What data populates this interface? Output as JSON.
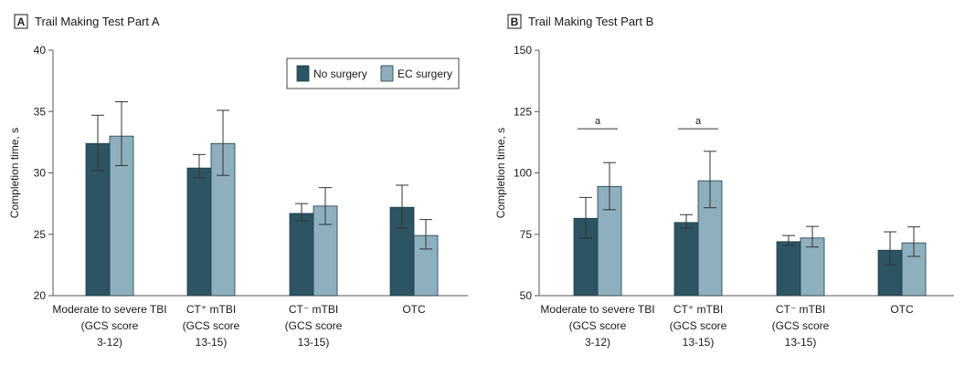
{
  "legend": {
    "items": [
      {
        "label": "No surgery",
        "color": "#2d5463"
      },
      {
        "label": "EC surgery",
        "color": "#8eafbe"
      }
    ],
    "placement": "top-right of panel A"
  },
  "categories": [
    [
      "Moderate to severe TBI",
      "(GCS score",
      "3-12)"
    ],
    [
      "CT⁺ mTBI",
      "(GCS score",
      "13-15)"
    ],
    [
      "CT⁻ mTBI",
      "(GCS score",
      "13-15)"
    ],
    [
      "OTC"
    ]
  ],
  "chart_data": [
    {
      "type": "bar",
      "panel": "A",
      "title": "Trail Making Test Part A",
      "ylabel": "Completion time, s",
      "ylim": [
        20,
        40
      ],
      "yticks": [
        20,
        25,
        30,
        35,
        40
      ],
      "categories": [
        "Moderate to severe TBI (GCS score 3-12)",
        "CT+ mTBI (GCS score 13-15)",
        "CT− mTBI (GCS score 13-15)",
        "OTC"
      ],
      "series": [
        {
          "name": "No surgery",
          "values": [
            32.4,
            30.4,
            26.7,
            27.2
          ],
          "error_low": [
            30.2,
            29.6,
            26.1,
            25.5
          ],
          "error_high": [
            34.7,
            31.5,
            27.5,
            29.0
          ]
        },
        {
          "name": "EC surgery",
          "values": [
            33.0,
            32.4,
            27.3,
            24.9
          ],
          "error_low": [
            30.6,
            29.8,
            25.8,
            23.8
          ],
          "error_high": [
            35.8,
            35.1,
            28.8,
            26.2
          ]
        }
      ],
      "annotations": []
    },
    {
      "type": "bar",
      "panel": "B",
      "title": "Trail Making Test Part B",
      "ylabel": "Completion time, s",
      "ylim": [
        50,
        150
      ],
      "yticks": [
        50,
        75,
        100,
        125,
        150
      ],
      "categories": [
        "Moderate to severe TBI (GCS score 3-12)",
        "CT+ mTBI (GCS score 13-15)",
        "CT− mTBI (GCS score 13-15)",
        "OTC"
      ],
      "series": [
        {
          "name": "No surgery",
          "values": [
            81.5,
            79.8,
            72.0,
            68.5
          ],
          "error_low": [
            73.5,
            77.5,
            70.5,
            62.5
          ],
          "error_high": [
            90.0,
            83.0,
            74.5,
            76.0
          ]
        },
        {
          "name": "EC surgery",
          "values": [
            94.5,
            96.8,
            73.5,
            71.5
          ],
          "error_low": [
            85.0,
            85.8,
            69.8,
            66.0
          ],
          "error_high": [
            104.2,
            108.8,
            78.2,
            78.0
          ]
        }
      ],
      "annotations": [
        {
          "text": "a",
          "category_index": 0,
          "y": 118
        },
        {
          "text": "a",
          "category_index": 1,
          "y": 118
        }
      ]
    }
  ]
}
